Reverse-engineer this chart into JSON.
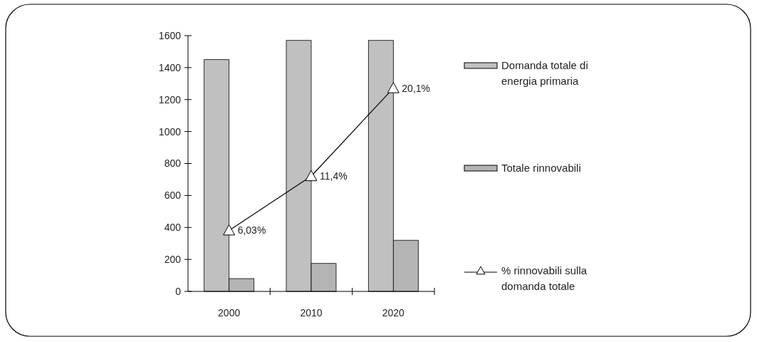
{
  "chart_data": {
    "type": "bar",
    "categories": [
      "2000",
      "2010",
      "2020"
    ],
    "series": [
      {
        "name": "Domanda totale di energia primaria",
        "color": "#c0c0c0",
        "values": [
          1450,
          1570,
          1570
        ]
      },
      {
        "name": "Totale rinnovabili",
        "color": "#b4b4b4",
        "values": [
          80,
          175,
          320
        ]
      },
      {
        "name": "% rinnovabili sulla domanda totale",
        "type": "line",
        "axis": "y2",
        "color": "#000000",
        "marker": "triangle",
        "values": [
          6.03,
          11.4,
          20.1
        ],
        "value_labels": [
          "6,03%",
          "11,4%",
          "20,1%"
        ]
      }
    ],
    "ylim": [
      0,
      1600
    ],
    "yticks": [
      0,
      200,
      400,
      600,
      800,
      1000,
      1200,
      1400,
      1600
    ],
    "y2lim": [
      0,
      25.3
    ],
    "grid": false,
    "legend": "right"
  }
}
